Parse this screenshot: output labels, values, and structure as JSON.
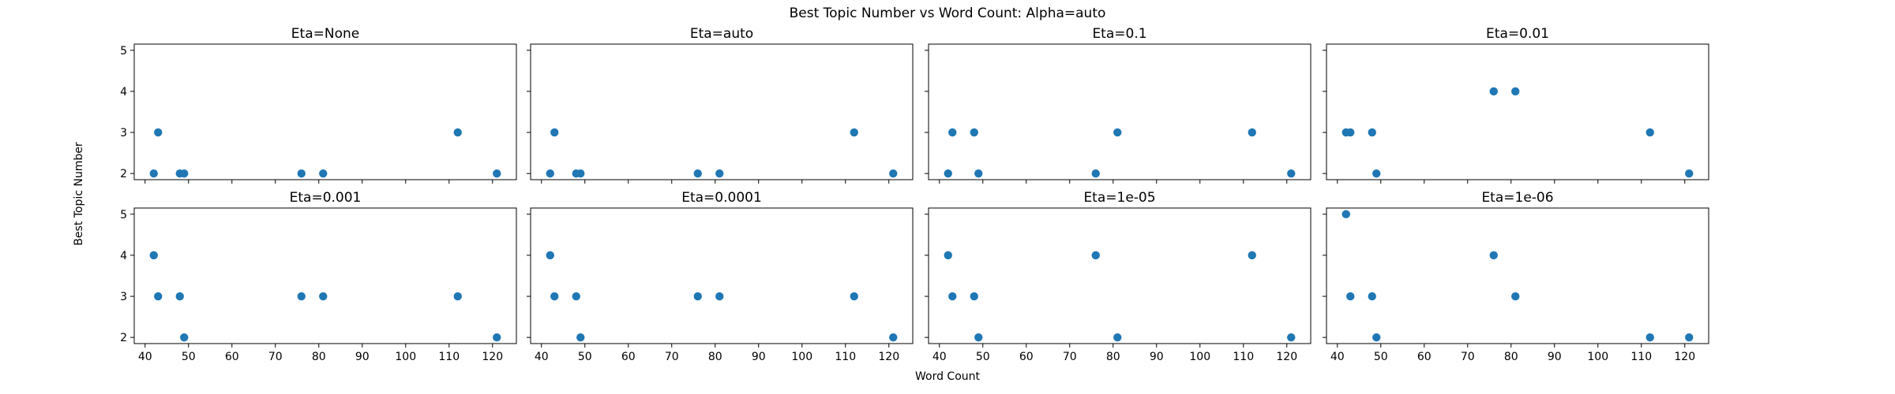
{
  "chart_data": {
    "type": "scatter",
    "title": "Best Topic Number vs Word Count: Alpha=auto",
    "xlabel": "Word Count",
    "ylabel": "Best Topic Number",
    "xlim": [
      37.5,
      125.5
    ],
    "ylim": [
      1.85,
      5.15
    ],
    "xticks": [
      40,
      50,
      60,
      70,
      80,
      90,
      100,
      110,
      120
    ],
    "yticks": [
      2,
      3,
      4,
      5
    ],
    "grid": false,
    "layout": "2 rows x 4 columns, shared axes",
    "marker_color": "#1f77b4",
    "x": [
      42,
      43,
      48,
      49,
      76,
      81,
      112,
      121
    ],
    "panels": [
      {
        "title": "Eta=None",
        "y": [
          2,
          3,
          2,
          2,
          2,
          2,
          3,
          2
        ]
      },
      {
        "title": "Eta=auto",
        "y": [
          2,
          3,
          2,
          2,
          2,
          2,
          3,
          2
        ]
      },
      {
        "title": "Eta=0.1",
        "y": [
          2,
          3,
          3,
          2,
          2,
          3,
          3,
          2
        ]
      },
      {
        "title": "Eta=0.01",
        "y": [
          3,
          3,
          3,
          2,
          4,
          4,
          3,
          2
        ]
      },
      {
        "title": "Eta=0.001",
        "y": [
          4,
          3,
          3,
          2,
          3,
          3,
          3,
          2
        ]
      },
      {
        "title": "Eta=0.0001",
        "y": [
          4,
          3,
          3,
          2,
          3,
          3,
          3,
          2
        ]
      },
      {
        "title": "Eta=1e-05",
        "y": [
          4,
          3,
          3,
          2,
          4,
          2,
          4,
          2
        ]
      },
      {
        "title": "Eta=1e-06",
        "y": [
          5,
          3,
          3,
          2,
          4,
          3,
          2,
          2
        ]
      }
    ]
  }
}
